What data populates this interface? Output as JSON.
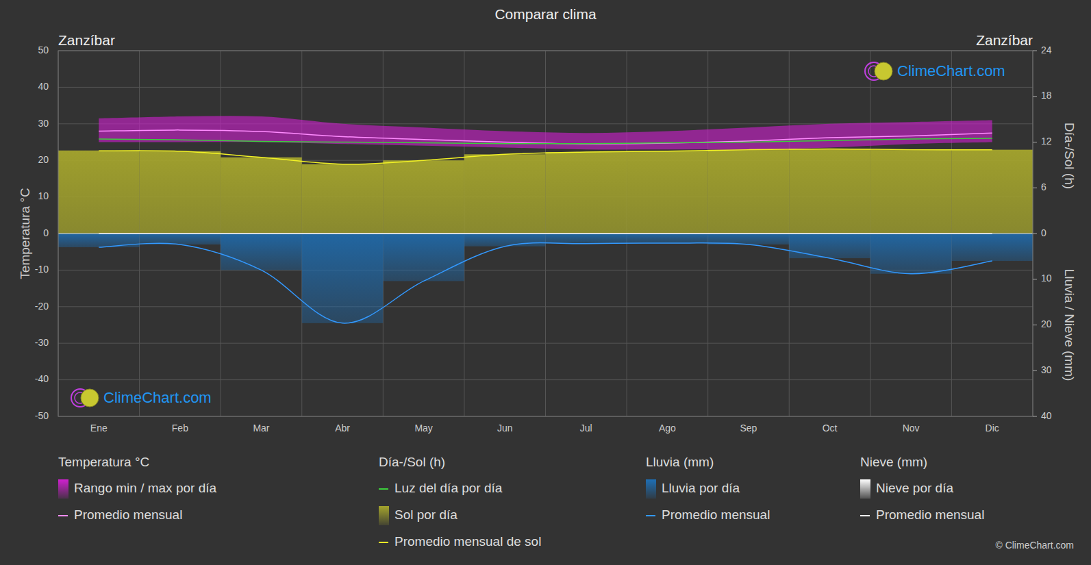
{
  "chart_data": {
    "type": "climate",
    "title": "Comparar clima",
    "subtitle_left": "Zanzíbar",
    "subtitle_right": "Zanzíbar",
    "y_label": "Temperatura °C",
    "y2_label": "Día-/Sol (h)",
    "y3_label": "Lluvia / Nieve (mm)",
    "watermark": "ClimeChart.com",
    "copyright": "© ClimeChart.com",
    "categories": [
      "Ene",
      "Feb",
      "Mar",
      "Abr",
      "May",
      "Jun",
      "Jul",
      "Ago",
      "Sep",
      "Oct",
      "Nov",
      "Dic"
    ],
    "ylim": [
      -50,
      50
    ],
    "yticks": [
      -50,
      -40,
      -30,
      -20,
      -10,
      0,
      10,
      20,
      30,
      40,
      50
    ],
    "y2lim": [
      -24,
      24
    ],
    "y2ticks": [
      0,
      6,
      12,
      18,
      24
    ],
    "y3lim": [
      40,
      -40
    ],
    "y3ticks": [
      10,
      20,
      30,
      40
    ],
    "grid": true,
    "legend": "bottom",
    "series": [
      {
        "name": "Rango min / max por día",
        "group": "Temperatura °C",
        "type": "range",
        "color": "#d020d0",
        "axis": "y",
        "values": [
          31.5,
          32,
          32,
          30,
          29,
          28,
          27.5,
          28,
          29,
          30,
          30.5,
          31
        ],
        "low": [
          25,
          25,
          25,
          24.5,
          24,
          23.5,
          23,
          23,
          23,
          23.5,
          24.5,
          25
        ]
      },
      {
        "name": "Promedio mensual",
        "group": "Temperatura °C",
        "type": "line",
        "color": "#ff8cff",
        "axis": "y",
        "values": [
          28,
          28.3,
          27.9,
          26.5,
          25.7,
          25.0,
          24.5,
          24.7,
          25.3,
          26.2,
          26.7,
          27.5
        ]
      },
      {
        "name": "Luz del día por día",
        "group": "Día-/Sol (h)",
        "type": "line",
        "color": "#3ccf3c",
        "axis": "y2",
        "values": [
          12.4,
          12.3,
          12.1,
          12.0,
          11.9,
          11.8,
          11.8,
          11.9,
          12.0,
          12.2,
          12.4,
          12.5
        ]
      },
      {
        "name": "Sol por día",
        "group": "Día-/Sol (h)",
        "type": "bar",
        "color": "#a5a52d",
        "axis": "y2",
        "values": [
          10.9,
          10.8,
          10.0,
          9.1,
          9.6,
          10.4,
          10.7,
          10.8,
          11.0,
          11.1,
          11.0,
          11.0
        ]
      },
      {
        "name": "Promedio mensual de sol",
        "group": "Día-/Sol (h)",
        "type": "line",
        "color": "#f2f226",
        "axis": "y2",
        "values": [
          10.85,
          10.8,
          10.0,
          9.1,
          9.6,
          10.4,
          10.7,
          10.8,
          11.0,
          11.1,
          11.0,
          11.0
        ]
      },
      {
        "name": "Lluvia por día",
        "group": "Lluvia (mm)",
        "type": "bar",
        "color": "#1e6fb5",
        "axis": "y3",
        "values": [
          3.0,
          2.4,
          8.0,
          19.6,
          10.4,
          2.8,
          2.2,
          2.1,
          2.4,
          5.4,
          8.8,
          6.0
        ]
      },
      {
        "name": "Promedio mensual",
        "group": "Lluvia (mm)",
        "type": "line",
        "color": "#3399ff",
        "axis": "y3",
        "values": [
          3.0,
          2.4,
          8.0,
          19.6,
          10.4,
          2.8,
          2.2,
          2.1,
          2.4,
          5.4,
          8.8,
          6.0
        ]
      },
      {
        "name": "Nieve por día",
        "group": "Nieve (mm)",
        "type": "bar",
        "color": "#ffffff",
        "axis": "y3",
        "values": [
          0,
          0,
          0,
          0,
          0,
          0,
          0,
          0,
          0,
          0,
          0,
          0
        ]
      },
      {
        "name": "Promedio mensual",
        "group": "Nieve (mm)",
        "type": "line",
        "color": "#ffffff",
        "axis": "y3",
        "values": [
          0,
          0,
          0,
          0,
          0,
          0,
          0,
          0,
          0,
          0,
          0,
          0
        ]
      }
    ]
  }
}
